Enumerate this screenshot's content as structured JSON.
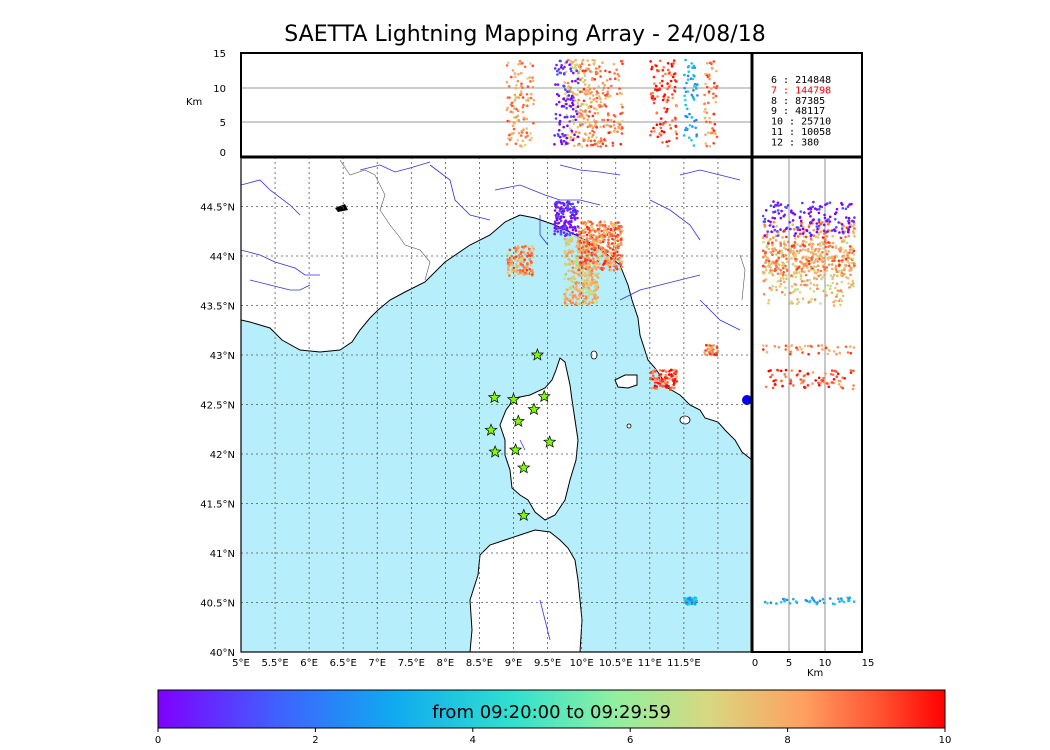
{
  "title": "SAETTA Lightning Mapping Array - 24/08/18",
  "colors": {
    "sea": "#b7eefb",
    "land": "#ffffff",
    "river": "#3333dd",
    "grid": "#555555",
    "station_fill": "#7cfc00",
    "highlight_text": "#ff0000",
    "dominant_source": "#ff5a28"
  },
  "legend": {
    "rows": [
      {
        "label": "6",
        "value": "214848",
        "highlight": false
      },
      {
        "label": "7",
        "value": "144798",
        "highlight": true
      },
      {
        "label": "8",
        "value": "87385",
        "highlight": false
      },
      {
        "label": "9",
        "value": "48117",
        "highlight": false
      },
      {
        "label": "10",
        "value": "25710",
        "highlight": false
      },
      {
        "label": "11",
        "value": "10058",
        "highlight": false
      },
      {
        "label": "12",
        "value": "380",
        "highlight": false
      }
    ]
  },
  "colorbar": {
    "label": "from 09:20:00 to 09:29:59",
    "ticks": [
      "0",
      "2",
      "4",
      "6",
      "8",
      "10"
    ],
    "range": [
      0,
      10
    ],
    "colormap": "rainbow"
  },
  "chart_data": {
    "type": "scatter",
    "map": {
      "lon_range": [
        5,
        12.5
      ],
      "lat_range": [
        40,
        45
      ],
      "lon_ticks": [
        "5°E",
        "5.5°E",
        "6°E",
        "6.5°E",
        "7°E",
        "7.5°E",
        "8°E",
        "8.5°E",
        "9°E",
        "9.5°E",
        "10°E",
        "10.5°E",
        "11°E",
        "11.5°E"
      ],
      "lat_ticks": [
        "40°N",
        "40.5°N",
        "41°N",
        "41.5°N",
        "42°N",
        "42.5°N",
        "43°N",
        "43.5°N",
        "44°N",
        "44.5°N"
      ],
      "grid": true
    },
    "altitude_panel_top": {
      "ylabel": "Km",
      "yticks": [
        "0",
        "5",
        "10",
        "15"
      ],
      "ylim": [
        0,
        15
      ]
    },
    "altitude_panel_right": {
      "xlabel": "Km",
      "xticks": [
        "0",
        "5",
        "10",
        "15"
      ],
      "xlim": [
        0,
        15
      ]
    },
    "stations": [
      {
        "lon": 9.35,
        "lat": 43.0
      },
      {
        "lon": 8.72,
        "lat": 42.57
      },
      {
        "lon": 9.0,
        "lat": 42.55
      },
      {
        "lon": 9.45,
        "lat": 42.58
      },
      {
        "lon": 9.3,
        "lat": 42.45
      },
      {
        "lon": 9.07,
        "lat": 42.33
      },
      {
        "lon": 8.67,
        "lat": 42.24
      },
      {
        "lon": 9.53,
        "lat": 42.12
      },
      {
        "lon": 8.73,
        "lat": 42.02
      },
      {
        "lon": 9.03,
        "lat": 42.04
      },
      {
        "lon": 9.15,
        "lat": 41.86
      },
      {
        "lon": 9.15,
        "lat": 41.38
      }
    ],
    "clusters": [
      {
        "lon": [
          9.75,
          10.25
        ],
        "lat": [
          43.5,
          44.2
        ],
        "time": 7.5
      },
      {
        "lon": [
          9.95,
          10.6
        ],
        "lat": [
          43.85,
          44.35
        ],
        "time": 8.5
      },
      {
        "lon": [
          8.9,
          9.3
        ],
        "lat": [
          43.8,
          44.1
        ],
        "time": 8.2
      },
      {
        "lon": [
          9.6,
          9.95
        ],
        "lat": [
          44.2,
          44.55
        ],
        "time": 0.3
      },
      {
        "lon": [
          11.0,
          11.4
        ],
        "lat": [
          42.65,
          42.85
        ],
        "time": 9.3
      },
      {
        "lon": [
          11.8,
          12.0
        ],
        "lat": [
          43.0,
          43.1
        ],
        "time": 8.5
      },
      {
        "lon": [
          11.5,
          11.7
        ],
        "lat": [
          40.48,
          40.55
        ],
        "time": 3.2
      }
    ]
  }
}
